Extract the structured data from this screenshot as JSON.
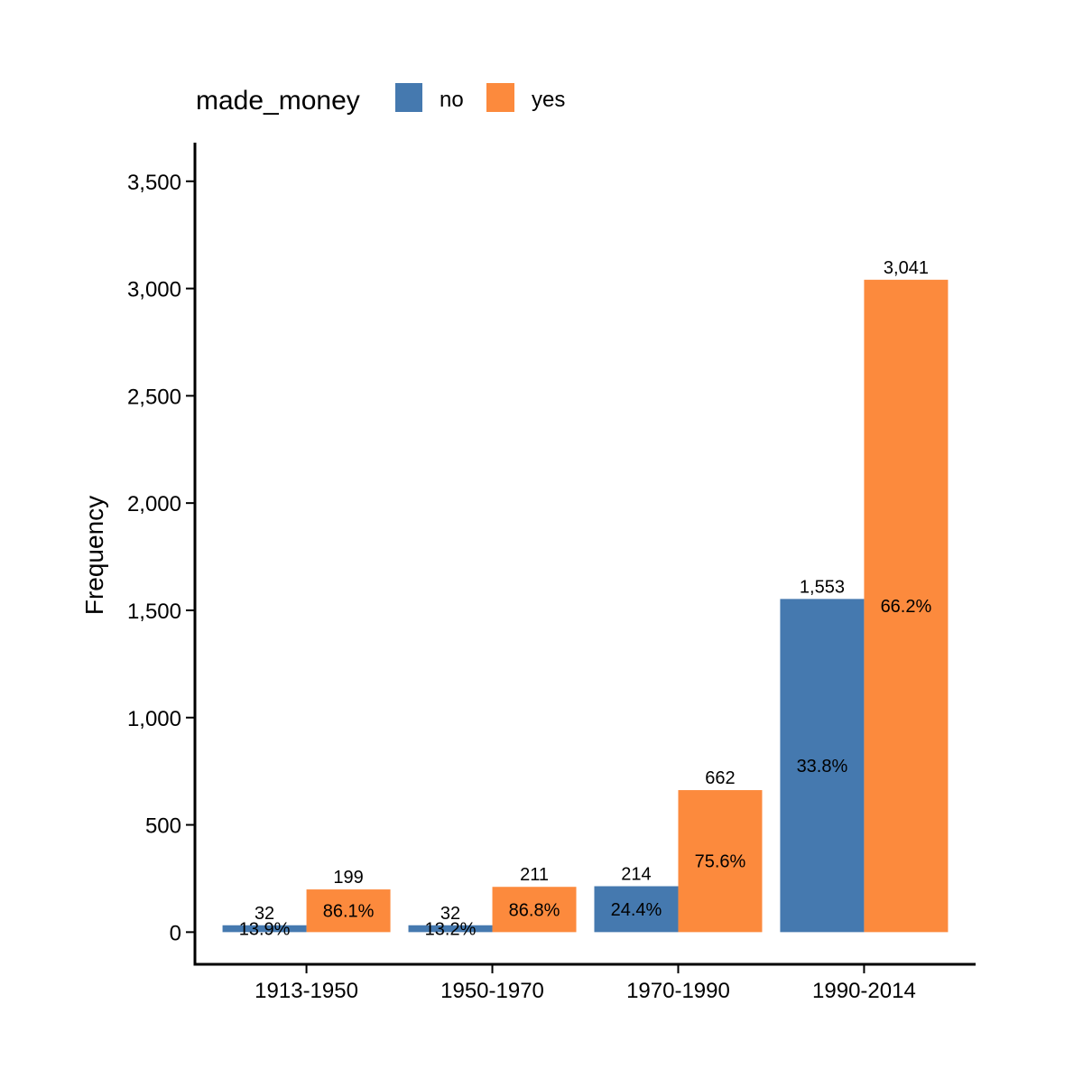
{
  "chart_data": {
    "type": "bar",
    "xlabel": "",
    "ylabel": "Frequency",
    "ylim": [
      -150,
      3680
    ],
    "yticks": [
      0,
      500,
      1000,
      1500,
      2000,
      2500,
      3000,
      3500
    ],
    "ytick_labels": [
      "0",
      "500",
      "1,000",
      "1,500",
      "2,000",
      "2,500",
      "3,000",
      "3,500"
    ],
    "categories": [
      "1913-1950",
      "1950-1970",
      "1970-1990",
      "1990-2014"
    ],
    "legend": {
      "title": "made_money",
      "position": "top-left"
    },
    "series": [
      {
        "name": "no",
        "color": "#4579AF",
        "values": [
          32,
          32,
          214,
          1553
        ],
        "count_labels": [
          "32",
          "32",
          "214",
          "1,553"
        ],
        "pct_labels": [
          "13.9%",
          "13.2%",
          "24.4%",
          "33.8%"
        ]
      },
      {
        "name": "yes",
        "color": "#FC8A3D",
        "values": [
          199,
          211,
          662,
          3041
        ],
        "count_labels": [
          "199",
          "211",
          "662",
          "3,041"
        ],
        "pct_labels": [
          "86.1%",
          "86.8%",
          "75.6%",
          "66.2%"
        ]
      }
    ],
    "grid": false
  }
}
